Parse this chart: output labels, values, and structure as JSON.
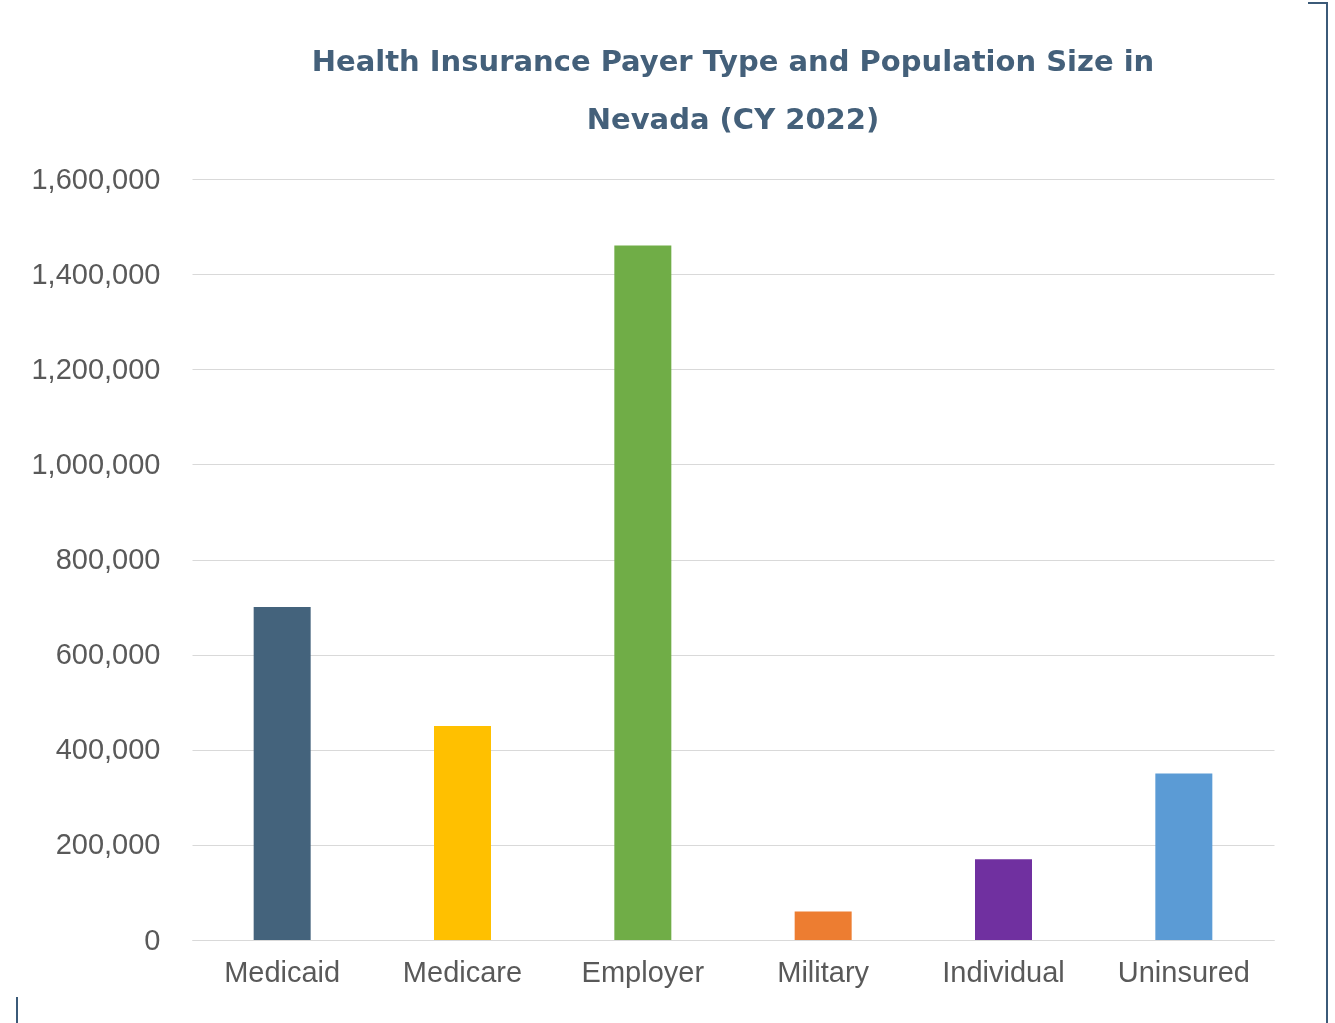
{
  "chart_data": {
    "type": "bar",
    "title": "Health Insurance Payer Type and Population Size in Nevada (CY 2022)",
    "categories": [
      "Medicaid",
      "Medicare",
      "Employer",
      "Military",
      "Individual",
      "Uninsured"
    ],
    "values": [
      700000,
      450000,
      1460000,
      60000,
      170000,
      350000
    ],
    "colors": [
      "#44637c",
      "#ffc000",
      "#70ad47",
      "#ed7d31",
      "#7030a0",
      "#5b9bd5"
    ],
    "ylim": [
      0,
      1600000
    ],
    "yticks": [
      {
        "value": 0,
        "label": "0"
      },
      {
        "value": 200000,
        "label": "200,000"
      },
      {
        "value": 400000,
        "label": "400,000"
      },
      {
        "value": 600000,
        "label": "600,000"
      },
      {
        "value": 800000,
        "label": "800,000"
      },
      {
        "value": 1000000,
        "label": "1,000,000"
      },
      {
        "value": 1200000,
        "label": "1,200,000"
      },
      {
        "value": 1400000,
        "label": "1,400,000"
      },
      {
        "value": 1600000,
        "label": "1,600,000"
      }
    ],
    "grid": "y"
  }
}
